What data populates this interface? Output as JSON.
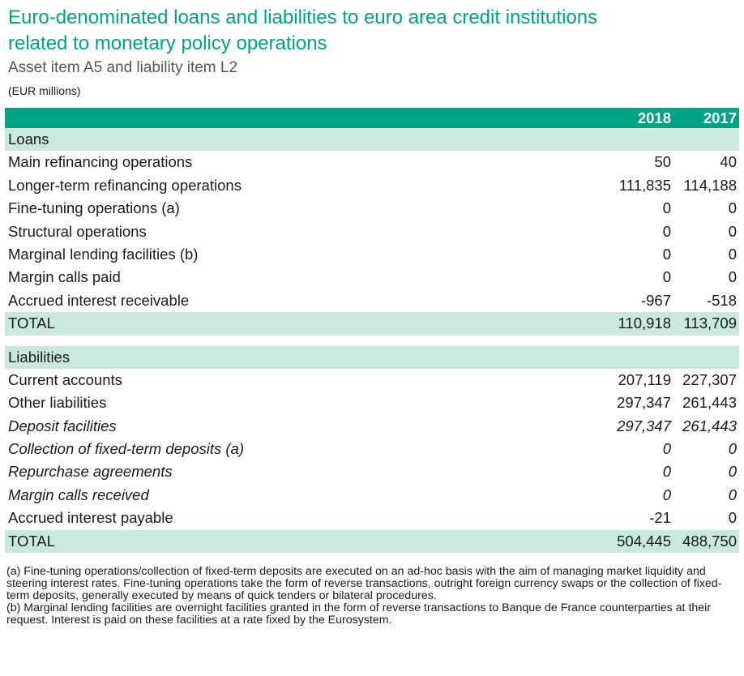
{
  "title_line1": "Euro-denominated loans and liabilities to euro area credit institutions",
  "title_line2": "related to monetary policy operations",
  "subtitle": "Asset item A5 and liability item L2",
  "units": "(EUR millions)",
  "header": {
    "col1": "2018",
    "col2": "2017"
  },
  "loans": {
    "section_label": "Loans",
    "rows": [
      {
        "label": "Main refinancing operations",
        "y2018": "50",
        "y2017": "40"
      },
      {
        "label": "Longer-term refinancing operations",
        "y2018": "111,835",
        "y2017": "114,188"
      },
      {
        "label": "Fine-tuning operations (a)",
        "y2018": "0",
        "y2017": "0"
      },
      {
        "label": "Structural operations",
        "y2018": "0",
        "y2017": "0"
      },
      {
        "label": "Marginal lending facilities (b)",
        "y2018": "0",
        "y2017": "0"
      },
      {
        "label": "Margin calls paid",
        "y2018": "0",
        "y2017": "0"
      },
      {
        "label": "Accrued interest receivable",
        "y2018": "-967",
        "y2017": "-518"
      }
    ],
    "total": {
      "label": "TOTAL",
      "y2018": "110,918",
      "y2017": "113,709"
    }
  },
  "liabilities": {
    "section_label": "Liabilities",
    "rows": [
      {
        "label": "Current accounts",
        "y2018": "207,119",
        "y2017": "227,307"
      },
      {
        "label": "Other liabilities",
        "y2018": "297,347",
        "y2017": "261,443"
      },
      {
        "label": "Deposit facilities",
        "y2018": "297,347",
        "y2017": "261,443"
      },
      {
        "label": "Collection of fixed-term deposits (a)",
        "y2018": "0",
        "y2017": "0"
      },
      {
        "label": "Repurchase agreements",
        "y2018": "0",
        "y2017": "0"
      },
      {
        "label": "Margin calls received",
        "y2018": "0",
        "y2017": "0"
      },
      {
        "label": "Accrued interest payable",
        "y2018": "-21",
        "y2017": "0"
      }
    ],
    "total": {
      "label": "TOTAL",
      "y2018": "504,445",
      "y2017": "488,750"
    }
  },
  "notes": {
    "a": "(a) Fine-tuning operations/collection of fixed-term deposits are executed on an ad-hoc basis with the aim of managing market liquidity and steering interest rates. Fine-tuning operations take the form of reverse transactions, outright foreign currency swaps or the collection of fixed-term deposits, generally executed by means of quick tenders or bilateral procedures.",
    "b": "(b) Marginal lending facilities are overnight facilities granted in the form of reverse transactions to Banque de France counterparties at their request. Interest is paid on these facilities at a rate fixed by the Eurosystem."
  },
  "colors": {
    "accent": "#00a384",
    "band": "#c9e8e0"
  }
}
